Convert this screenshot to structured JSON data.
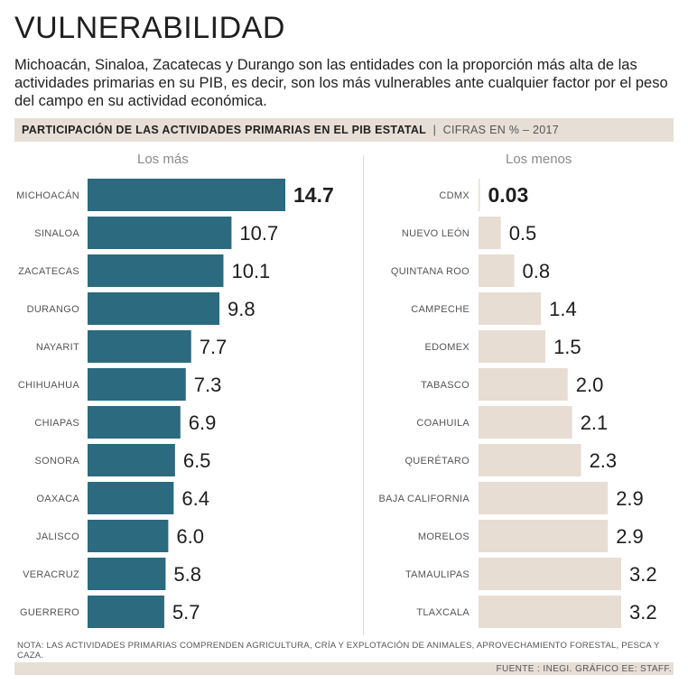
{
  "title": "VULNERABILIDAD",
  "lede": "Michoacán, Sinaloa, Zacatecas y Durango son las entidades con la proporción más alta de las actividades primarias en su PIB, es decir, son los más vulnerables ante cualquier factor por el peso del campo en su actividad económica.",
  "subhead": {
    "main": "PARTICIPACIÓN DE LAS ACTIVIDADES PRIMARIAS EN EL PIB ESTATAL",
    "separator": "|",
    "detail": "CIFRAS EN % – 2017"
  },
  "colors": {
    "most_bar": "#2b6a7f",
    "least_bar": "#e8ddd3",
    "band": "#e7dfd6"
  },
  "chart_data": [
    {
      "type": "bar",
      "orientation": "horizontal",
      "title": "Los más",
      "categories": [
        "MICHOACÁN",
        "SINALOA",
        "ZACATECAS",
        "DURANGO",
        "NAYARIT",
        "CHIHUAHUA",
        "CHIAPAS",
        "SONORA",
        "OAXACA",
        "JALISCO",
        "VERACRUZ",
        "GUERRERO"
      ],
      "values": [
        14.7,
        10.7,
        10.1,
        9.8,
        7.7,
        7.3,
        6.9,
        6.5,
        6.4,
        6.0,
        5.8,
        5.7
      ],
      "labels": [
        "14.7",
        "10.7",
        "10.1",
        "9.8",
        "7.7",
        "7.3",
        "6.9",
        "6.5",
        "6.4",
        "6.0",
        "5.8",
        "5.7"
      ],
      "unit": "%",
      "xlim": [
        0,
        14.7
      ]
    },
    {
      "type": "bar",
      "orientation": "horizontal",
      "title": "Los menos",
      "categories": [
        "CDMX",
        "NUEVO LEÓN",
        "QUINTANA ROO",
        "CAMPECHE",
        "EDOMEX",
        "TABASCO",
        "COAHUILA",
        "QUERÉTARO",
        "BAJA CALIFORNIA",
        "MORELOS",
        "TAMAULIPAS",
        "TLAXCALA"
      ],
      "values": [
        0.03,
        0.5,
        0.8,
        1.4,
        1.5,
        2.0,
        2.1,
        2.3,
        2.9,
        2.9,
        3.2,
        3.2
      ],
      "labels": [
        "0.03",
        "0.5",
        "0.8",
        "1.4",
        "1.5",
        "2.0",
        "2.1",
        "2.3",
        "2.9",
        "2.9",
        "3.2",
        "3.2"
      ],
      "unit": "%",
      "xlim": [
        0,
        3.2
      ]
    }
  ],
  "note": "NOTA: LAS ACTIVIDADES PRIMARIAS COMPRENDEN AGRICULTURA, CRÍA Y EXPLOTACIÓN DE ANIMALES, APROVECHAMIENTO FORESTAL, PESCA Y CAZA.",
  "source": "FUENTE : INEGI. GRÁFICO EE: STAFF."
}
